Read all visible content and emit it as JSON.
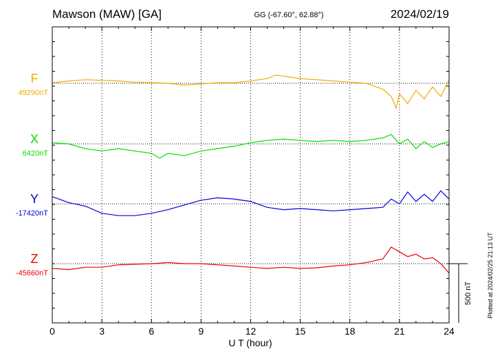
{
  "header": {
    "title": "Mawson (MAW)  [GA]",
    "coords": "GG (-67.60°,  62.88°)",
    "date": "2024/02/19"
  },
  "footer_note": "Plotted at 2024/02/25 21:13 UT",
  "scale_bar_label": "500 nT",
  "colors": {
    "F": "#f5a800",
    "X": "#00dd00",
    "Y": "#0000dd",
    "Z": "#ee0000",
    "axis": "#000000"
  },
  "chart_data": {
    "type": "line",
    "title": "Mawson (MAW)  [GA]",
    "xlabel": "U T (hour)",
    "xlim": [
      0,
      24
    ],
    "xticks": [
      0,
      3,
      6,
      9,
      12,
      15,
      18,
      21,
      24
    ],
    "grid": true,
    "scale_nT": 500,
    "series": [
      {
        "name": "F",
        "baseline": 49290,
        "baseline_label": "49290nT",
        "x": [
          0,
          1,
          2,
          3,
          4,
          5,
          6,
          7,
          8,
          9,
          10,
          11,
          12,
          13,
          13.5,
          14,
          15,
          16,
          17,
          18,
          19,
          20,
          20.5,
          20.8,
          21,
          21.5,
          22,
          22.5,
          23,
          23.5,
          24
        ],
        "y": [
          49295,
          49310,
          49320,
          49315,
          49310,
          49300,
          49295,
          49290,
          49275,
          49285,
          49295,
          49295,
          49310,
          49330,
          49360,
          49350,
          49330,
          49320,
          49310,
          49300,
          49290,
          49240,
          49180,
          49080,
          49200,
          49120,
          49230,
          49160,
          49260,
          49180,
          49320
        ]
      },
      {
        "name": "X",
        "baseline": 6420,
        "baseline_label": "6420nT",
        "x": [
          0,
          1,
          2,
          3,
          4,
          5,
          6,
          6.5,
          7,
          8,
          9,
          10,
          11,
          12,
          13,
          14,
          15,
          16,
          17,
          18,
          19,
          20,
          20.5,
          21,
          21.5,
          22,
          22.5,
          23,
          23.5,
          24
        ],
        "y": [
          6430,
          6420,
          6380,
          6360,
          6380,
          6360,
          6340,
          6300,
          6340,
          6320,
          6360,
          6380,
          6400,
          6430,
          6450,
          6460,
          6450,
          6440,
          6450,
          6440,
          6450,
          6470,
          6500,
          6420,
          6460,
          6380,
          6440,
          6390,
          6420,
          6440
        ]
      },
      {
        "name": "Y",
        "baseline": -17420,
        "baseline_label": "-17420nT",
        "x": [
          0,
          1,
          2,
          3,
          4,
          5,
          6,
          7,
          8,
          9,
          10,
          11,
          12,
          13,
          14,
          15,
          16,
          17,
          18,
          19,
          20,
          20.5,
          21,
          21.5,
          22,
          22.5,
          23,
          23.5,
          24
        ],
        "y": [
          -17360,
          -17410,
          -17440,
          -17500,
          -17520,
          -17520,
          -17500,
          -17470,
          -17430,
          -17390,
          -17370,
          -17380,
          -17400,
          -17450,
          -17470,
          -17460,
          -17470,
          -17480,
          -17470,
          -17460,
          -17450,
          -17380,
          -17420,
          -17320,
          -17400,
          -17340,
          -17400,
          -17310,
          -17380
        ]
      },
      {
        "name": "Z",
        "baseline": -45660,
        "baseline_label": "-45660nT",
        "x": [
          0,
          1,
          2,
          3,
          4,
          5,
          6,
          7,
          8,
          9,
          10,
          11,
          12,
          13,
          14,
          15,
          16,
          17,
          18,
          19,
          20,
          20.5,
          21,
          21.5,
          22,
          22.5,
          23,
          23.5,
          24
        ],
        "y": [
          -45700,
          -45710,
          -45690,
          -45690,
          -45670,
          -45665,
          -45660,
          -45650,
          -45660,
          -45660,
          -45670,
          -45680,
          -45690,
          -45700,
          -45690,
          -45700,
          -45695,
          -45680,
          -45670,
          -45650,
          -45620,
          -45520,
          -45560,
          -45600,
          -45580,
          -45620,
          -45610,
          -45660,
          -45740
        ]
      }
    ]
  }
}
